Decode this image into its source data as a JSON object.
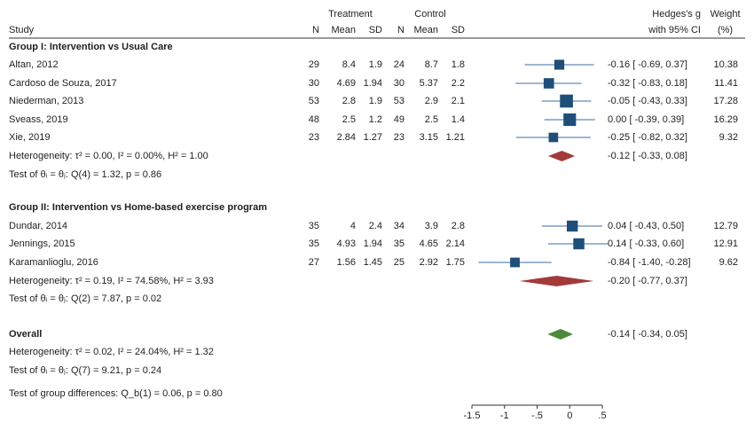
{
  "header": {
    "study": "Study",
    "treatment": "Treatment",
    "control": "Control",
    "n": "N",
    "mean": "Mean",
    "sd": "SD",
    "effect_line1": "Hedges's g",
    "effect_line2": "with 95% CI",
    "weight_line1": "Weight",
    "weight_line2": "(%)"
  },
  "groups": [
    {
      "title": "Group I: Intervention vs Usual Care",
      "studies": [
        {
          "name": "Altan, 2012",
          "tn": "29",
          "tmean": "8.4",
          "tsd": "1.9",
          "cn": "24",
          "cmean": "8.7",
          "csd": "1.8",
          "ci_text": "-0.16 [ -0.69,  0.37]",
          "weight": "10.38"
        },
        {
          "name": "Cardoso de Souza, 2017",
          "tn": "30",
          "tmean": "4.69",
          "tsd": "1.94",
          "cn": "30",
          "cmean": "5.37",
          "csd": "2.2",
          "ci_text": "-0.32 [ -0.83,  0.18]",
          "weight": "11.41"
        },
        {
          "name": "Niederman, 2013",
          "tn": "53",
          "tmean": "2.8",
          "tsd": "1.9",
          "cn": "53",
          "cmean": "2.9",
          "csd": "2.1",
          "ci_text": "-0.05 [ -0.43,  0.33]",
          "weight": "17.28"
        },
        {
          "name": "Sveass, 2019",
          "tn": "48",
          "tmean": "2.5",
          "tsd": "1.2",
          "cn": "49",
          "cmean": "2.5",
          "csd": "1.4",
          "ci_text": "0.00 [ -0.39,  0.39]",
          "weight": "16.29"
        },
        {
          "name": "Xie, 2019",
          "tn": "23",
          "tmean": "2.84",
          "tsd": "1.27",
          "cn": "23",
          "cmean": "3.15",
          "csd": "1.21",
          "ci_text": "-0.25 [ -0.82,  0.32]",
          "weight": "9.32"
        }
      ],
      "heterogeneity": "Heterogeneity: τ² = 0.00, I² = 0.00%, H² = 1.00",
      "pooled_ci_text": "-0.12 [ -0.33,  0.08]",
      "test": "Test of θᵢ = θⱼ: Q(4) = 1.32, p = 0.86"
    },
    {
      "title": "Group II: Intervention vs Home-based exercise program",
      "studies": [
        {
          "name": "Dundar, 2014",
          "tn": "35",
          "tmean": "4",
          "tsd": "2.4",
          "cn": "34",
          "cmean": "3.9",
          "csd": "2.8",
          "ci_text": "0.04 [ -0.43,  0.50]",
          "weight": "12.79"
        },
        {
          "name": "Jennings, 2015",
          "tn": "35",
          "tmean": "4.93",
          "tsd": "1.94",
          "cn": "35",
          "cmean": "4.65",
          "csd": "2.14",
          "ci_text": "0.14 [ -0.33,  0.60]",
          "weight": "12.91"
        },
        {
          "name": "Karamanlioglu, 2016",
          "tn": "27",
          "tmean": "1.56",
          "tsd": "1.45",
          "cn": "25",
          "cmean": "2.92",
          "csd": "1.75",
          "ci_text": "-0.84 [ -1.40, -0.28]",
          "weight": "9.62"
        }
      ],
      "heterogeneity": "Heterogeneity: τ² = 0.19, I² = 74.58%, H² = 3.93",
      "pooled_ci_text": "-0.20 [ -0.77,  0.37]",
      "test": "Test of θᵢ = θⱼ: Q(2) = 7.87, p = 0.02"
    }
  ],
  "overall": {
    "title": "Overall",
    "heterogeneity": "Heterogeneity: τ² = 0.02, I² = 24.04%, H² = 1.32",
    "ci_text": "-0.14 [ -0.34,  0.05]",
    "test": "Test of θᵢ = θⱼ: Q(7) = 9.21, p = 0.24",
    "group_test": "Test of group differences: Q_b(1) = 0.06, p = 0.80"
  },
  "colors": {
    "study_marker": "#1f4e79",
    "group_diamond": "#a33a3a",
    "overall_diamond": "#4d8a3c",
    "ci_line": "#3b6ea5"
  },
  "chart_data": {
    "type": "scatter",
    "subtype": "forest",
    "x_axis": {
      "ticks": [
        -1.5,
        -1,
        -0.5,
        0,
        0.5
      ],
      "tick_labels": [
        "-1.5",
        "-1",
        "-.5",
        "0",
        ".5"
      ],
      "range": [
        -1.5,
        0.5
      ]
    },
    "series": [
      {
        "group": "Group I: Intervention vs Usual Care",
        "studies": [
          {
            "study": "Altan, 2012",
            "g": -0.16,
            "lo": -0.69,
            "hi": 0.37,
            "weight": 10.38
          },
          {
            "study": "Cardoso de Souza, 2017",
            "g": -0.32,
            "lo": -0.83,
            "hi": 0.18,
            "weight": 11.41
          },
          {
            "study": "Niederman, 2013",
            "g": -0.05,
            "lo": -0.43,
            "hi": 0.33,
            "weight": 17.28
          },
          {
            "study": "Sveass, 2019",
            "g": 0.0,
            "lo": -0.39,
            "hi": 0.39,
            "weight": 16.29
          },
          {
            "study": "Xie, 2019",
            "g": -0.25,
            "lo": -0.82,
            "hi": 0.32,
            "weight": 9.32
          }
        ],
        "pooled": {
          "g": -0.12,
          "lo": -0.33,
          "hi": 0.08
        }
      },
      {
        "group": "Group II: Intervention vs Home-based exercise program",
        "studies": [
          {
            "study": "Dundar, 2014",
            "g": 0.04,
            "lo": -0.43,
            "hi": 0.5,
            "weight": 12.79
          },
          {
            "study": "Jennings, 2015",
            "g": 0.14,
            "lo": -0.33,
            "hi": 0.6,
            "weight": 12.91
          },
          {
            "study": "Karamanlioglu, 2016",
            "g": -0.84,
            "lo": -1.4,
            "hi": -0.28,
            "weight": 9.62
          }
        ],
        "pooled": {
          "g": -0.2,
          "lo": -0.77,
          "hi": 0.37
        }
      }
    ],
    "overall": {
      "g": -0.14,
      "lo": -0.34,
      "hi": 0.05
    }
  }
}
